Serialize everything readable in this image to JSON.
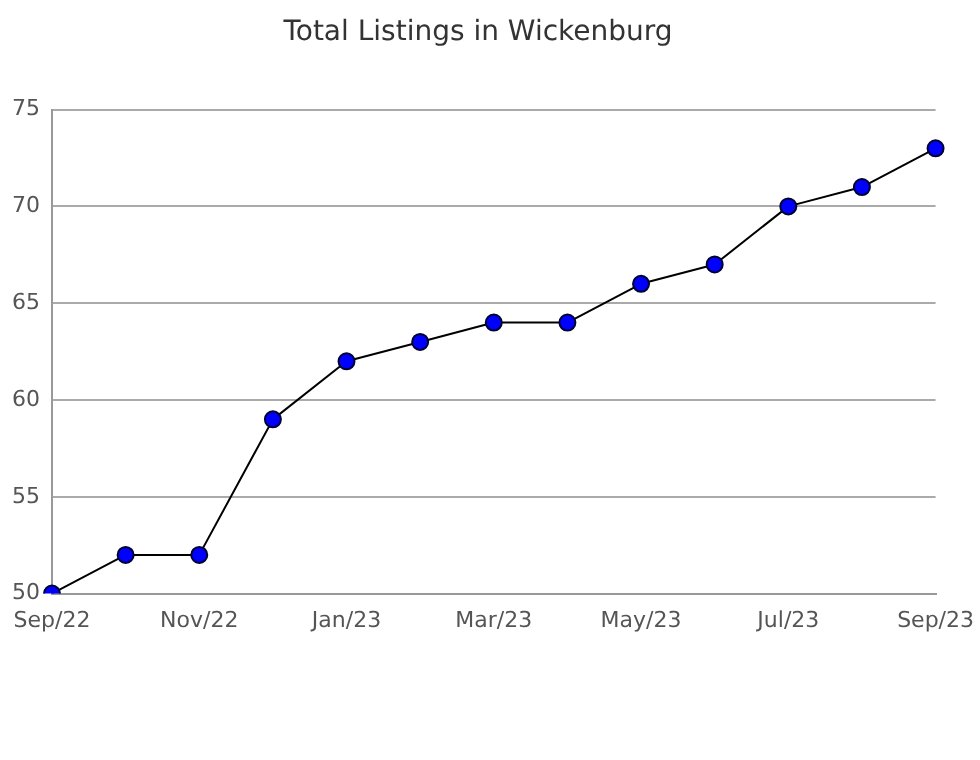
{
  "chart_data": {
    "type": "line",
    "title": "Total Listings in Wickenburg",
    "categories": [
      "Sep/22",
      null,
      "Nov/22",
      null,
      "Jan/23",
      null,
      "Mar/23",
      null,
      "May/23",
      null,
      "Jul/23",
      null,
      "Sep/23"
    ],
    "series": [
      {
        "color": "#0000ff",
        "values": [
          50,
          52,
          52,
          59,
          62,
          63,
          64,
          64,
          66,
          67,
          70,
          71,
          73
        ]
      }
    ],
    "ylim": [
      50,
      75
    ],
    "yticks": [
      50,
      55,
      60,
      65,
      70,
      75
    ],
    "grid": "y",
    "legend": false,
    "marker": "circle",
    "line_style": "solid"
  }
}
